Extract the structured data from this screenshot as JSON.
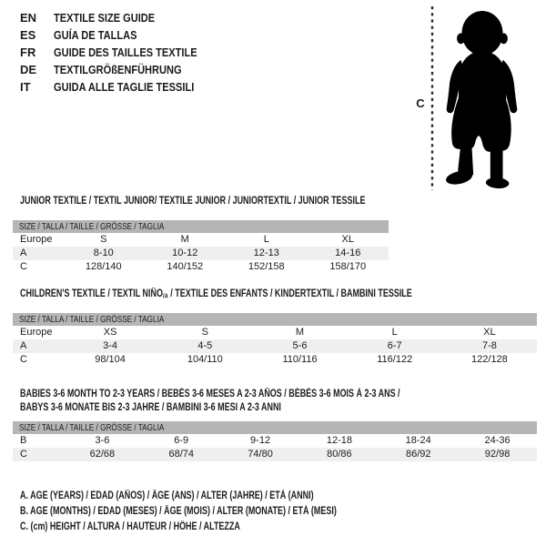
{
  "header": {
    "languages": [
      {
        "code": "EN",
        "label": "TEXTILE SIZE GUIDE"
      },
      {
        "code": "ES",
        "label": "GUÍA DE TALLAS"
      },
      {
        "code": "FR",
        "label": "GUIDE DES TAILLES TEXTILE"
      },
      {
        "code": "DE",
        "label": "TEXTILGRÖßENFÜHRUNG"
      },
      {
        "code": "IT",
        "label": "GUIDA ALLE TAGLIE TESSILI"
      }
    ]
  },
  "figure": {
    "icon": "baby-silhouette",
    "measure_label": "C"
  },
  "tables": [
    {
      "title_lines": [
        [
          {
            "text": "JUNIOR TEXTILE / TEXTIL JUNIOR/ TEXTILE JUNIOR / JUNIORTEXTIL / JUNIOR TESSILE"
          }
        ]
      ],
      "size_header": "SIZE / TALLA / TAILLE / GRÖSSE / TAGLIA",
      "rows": [
        {
          "cells": [
            "Europe",
            "S",
            "M",
            "L",
            "XL"
          ],
          "shaded": false
        },
        {
          "cells": [
            "A",
            "8-10",
            "10-12",
            "12-13",
            "14-16"
          ],
          "shaded": true
        },
        {
          "cells": [
            "C",
            "128/140",
            "140/152",
            "152/158",
            "158/170"
          ],
          "shaded": false
        }
      ]
    },
    {
      "title_lines": [
        [
          {
            "text": "CHILDREN'S TEXTILE / TEXTIL NIÑO"
          },
          {
            "text": "/A",
            "sub": true
          },
          {
            "text": " / TEXTILE DES ENFANTS / KINDERTEXTIL / BAMBINI TESSILE"
          }
        ]
      ],
      "size_header": "SIZE / TALLA / TAILLE / GRÖSSE / TAGLIA",
      "rows": [
        {
          "cells": [
            "Europe",
            "XS",
            "S",
            "M",
            "L",
            "XL"
          ],
          "shaded": false
        },
        {
          "cells": [
            "A",
            "3-4",
            "4-5",
            "5-6",
            "6-7",
            "7-8"
          ],
          "shaded": true
        },
        {
          "cells": [
            "C",
            "98/104",
            "104/110",
            "110/116",
            "116/122",
            "122/128"
          ],
          "shaded": false
        }
      ]
    },
    {
      "title_lines": [
        [
          {
            "text": "BABIES 3-6 MONTH TO 2-3 YEARS / BEBÉS 3-6 MESES A 2-3 AÑOS / BÉBÉS 3-6 MOIS À 2-3 ANS /"
          }
        ],
        [
          {
            "text": "BABYS 3-6 MONATE BIS 2-3 JAHRE / BAMBINI 3-6 MESI A 2-3 ANNI"
          }
        ]
      ],
      "size_header": "SIZE / TALLA / TAILLE / GRÖSSE / TAGLIA",
      "rows": [
        {
          "cells": [
            "B",
            "3-6",
            "6-9",
            "9-12",
            "12-18",
            "18-24",
            "24-36"
          ],
          "shaded": false
        },
        {
          "cells": [
            "C",
            "62/68",
            "68/74",
            "74/80",
            "80/86",
            "86/92",
            "92/98"
          ],
          "shaded": true
        }
      ]
    }
  ],
  "footnotes": [
    "A. AGE (YEARS) / EDAD (AÑOS) / ÂGE (ANS) / ALTER (JAHRE) / ETÀ (ANNI)",
    "B. AGE (MONTHS) / EDAD (MESES) / ÂGE (MOIS) / ALTER (MONATE) / ETÀ (MESI)",
    "C. (cm) HEIGHT / ALTURA / HAUTEUR / HÖHE / ALTEZZA"
  ],
  "colors": {
    "table_header_bg": "#b5b5b5",
    "row_shaded_bg": "#efefef",
    "text": "#1b1b1b",
    "silhouette": "#000000"
  }
}
